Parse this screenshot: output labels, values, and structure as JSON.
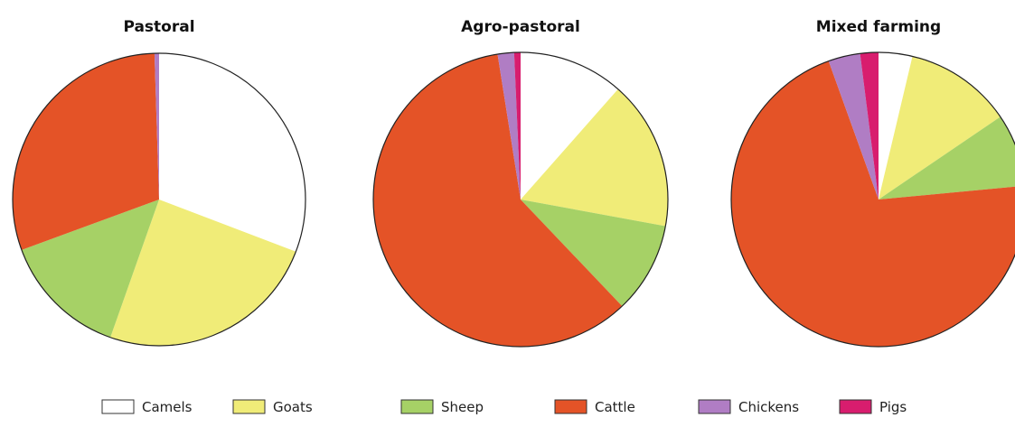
{
  "chart_data": {
    "type": "pie",
    "categories": [
      "Camels",
      "Goats",
      "Sheep",
      "Cattle",
      "Chickens",
      "Pigs"
    ],
    "colors": {
      "Camels": "#ffffff",
      "Goats": "#f0ec78",
      "Sheep": "#a6d166",
      "Cattle": "#e45327",
      "Chickens": "#b07dc4",
      "Pigs": "#d81d6e"
    },
    "pies": [
      {
        "title": "Pastoral",
        "values": {
          "Camels": 30.8,
          "Goats": 24.6,
          "Sheep": 14.0,
          "Cattle": 30.1,
          "Chickens": 0.5,
          "Pigs": 0
        }
      },
      {
        "title": "Agro-pastoral",
        "values": {
          "Camels": 11.5,
          "Goats": 16.4,
          "Sheep": 10.0,
          "Cattle": 59.6,
          "Chickens": 1.8,
          "Pigs": 0.7
        }
      },
      {
        "title": "Mixed farming",
        "values": {
          "Camels": 3.7,
          "Goats": 11.8,
          "Sheep": 8.0,
          "Cattle": 71.0,
          "Chickens": 3.5,
          "Pigs": 2.0
        }
      }
    ],
    "legend": {
      "position": "bottom",
      "items": [
        "Camels",
        "Goats",
        "Sheep",
        "Cattle",
        "Chickens",
        "Pigs"
      ]
    }
  }
}
